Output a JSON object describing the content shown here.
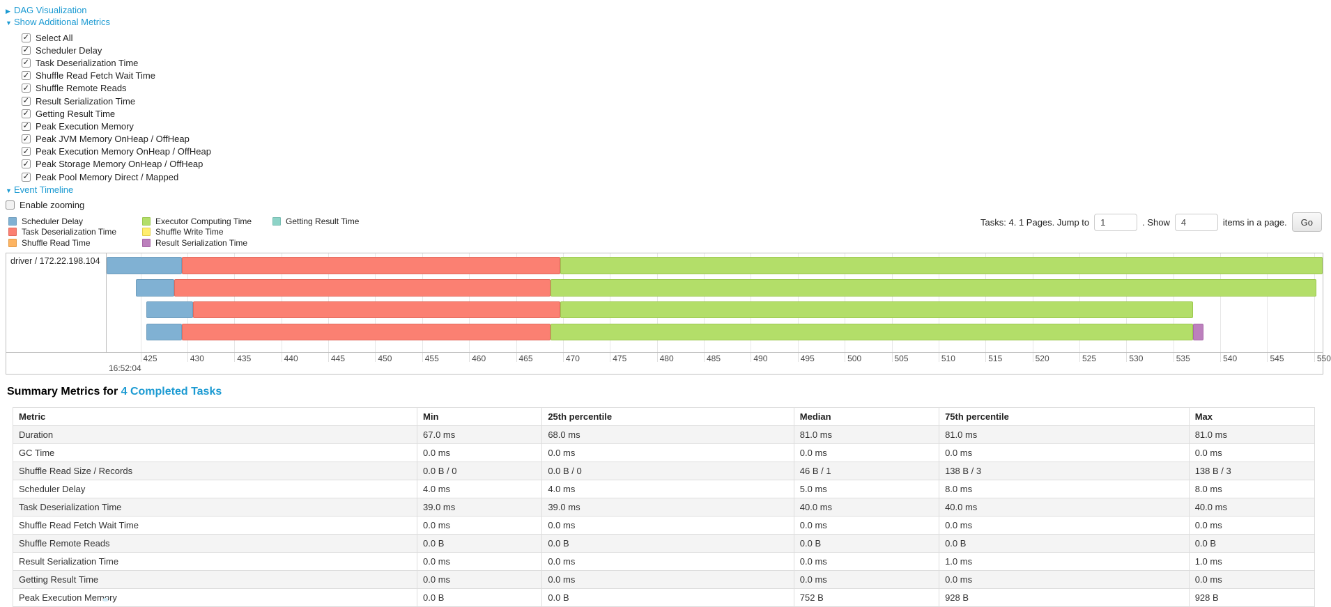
{
  "sections": {
    "dag": {
      "label": "DAG Visualization",
      "state": "collapsed"
    },
    "metrics": {
      "label": "Show Additional Metrics",
      "state": "expanded"
    },
    "event_timeline": {
      "label": "Event Timeline",
      "state": "expanded"
    }
  },
  "metric_checkboxes": [
    {
      "label": "Select All",
      "checked": true
    },
    {
      "label": "Scheduler Delay",
      "checked": true
    },
    {
      "label": "Task Deserialization Time",
      "checked": true
    },
    {
      "label": "Shuffle Read Fetch Wait Time",
      "checked": true
    },
    {
      "label": "Shuffle Remote Reads",
      "checked": true
    },
    {
      "label": "Result Serialization Time",
      "checked": true
    },
    {
      "label": "Getting Result Time",
      "checked": true
    },
    {
      "label": "Peak Execution Memory",
      "checked": true
    },
    {
      "label": "Peak JVM Memory OnHeap / OffHeap",
      "checked": true
    },
    {
      "label": "Peak Execution Memory OnHeap / OffHeap",
      "checked": true
    },
    {
      "label": "Peak Storage Memory OnHeap / OffHeap",
      "checked": true
    },
    {
      "label": "Peak Pool Memory Direct / Mapped",
      "checked": true
    }
  ],
  "enable_zooming": {
    "label": "Enable zooming",
    "checked": false
  },
  "series_colors": {
    "scheduler_delay": {
      "fill": "#80B1D3",
      "border": "#6f9dbd"
    },
    "task_deserialization": {
      "fill": "#FB8072",
      "border": "#e26a5d"
    },
    "shuffle_read": {
      "fill": "#FDB462",
      "border": "#e49a47"
    },
    "executor_computing": {
      "fill": "#B3DE69",
      "border": "#9cc850"
    },
    "shuffle_write": {
      "fill": "#FFED6F",
      "border": "#e3cf4b"
    },
    "result_serialization": {
      "fill": "#BC80BD",
      "border": "#a667a7"
    },
    "getting_result": {
      "fill": "#8DD3C7",
      "border": "#76bcb0"
    }
  },
  "legend_columns": [
    [
      {
        "key": "scheduler_delay",
        "label": "Scheduler Delay"
      },
      {
        "key": "task_deserialization",
        "label": "Task Deserialization Time"
      },
      {
        "key": "shuffle_read",
        "label": "Shuffle Read Time"
      }
    ],
    [
      {
        "key": "executor_computing",
        "label": "Executor Computing Time"
      },
      {
        "key": "shuffle_write",
        "label": "Shuffle Write Time"
      },
      {
        "key": "result_serialization",
        "label": "Result Serialization Time"
      }
    ],
    [
      {
        "key": "getting_result",
        "label": "Getting Result Time"
      }
    ]
  ],
  "pagination": {
    "prefix": "Tasks: 4. 1 Pages. Jump to",
    "jump_value": "1",
    "mid": ". Show",
    "show_value": "4",
    "suffix": "items in a page.",
    "go_label": "Go"
  },
  "timeline": {
    "executor_label": "driver / 172.22.198.104",
    "axis": {
      "domain": [
        421.4,
        550.9
      ],
      "ticks": [
        425,
        430,
        435,
        440,
        445,
        450,
        455,
        460,
        465,
        470,
        475,
        480,
        485,
        490,
        495,
        500,
        505,
        510,
        515,
        520,
        525,
        530,
        535,
        540,
        545,
        550
      ],
      "time_label": "16:52:04"
    },
    "tasks": [
      {
        "segments": [
          {
            "key": "scheduler_delay",
            "start": 421.4,
            "end": 429.4
          },
          {
            "key": "task_deserialization",
            "start": 429.4,
            "end": 469.7
          },
          {
            "key": "executor_computing",
            "start": 469.7,
            "end": 550.9
          }
        ]
      },
      {
        "segments": [
          {
            "key": "scheduler_delay",
            "start": 424.5,
            "end": 428.6
          },
          {
            "key": "task_deserialization",
            "start": 428.6,
            "end": 468.7
          },
          {
            "key": "executor_computing",
            "start": 468.7,
            "end": 550.2
          }
        ]
      },
      {
        "segments": [
          {
            "key": "scheduler_delay",
            "start": 425.6,
            "end": 430.6
          },
          {
            "key": "task_deserialization",
            "start": 430.6,
            "end": 469.7
          },
          {
            "key": "executor_computing",
            "start": 469.7,
            "end": 537.1
          }
        ]
      },
      {
        "segments": [
          {
            "key": "scheduler_delay",
            "start": 425.6,
            "end": 429.4
          },
          {
            "key": "task_deserialization",
            "start": 429.4,
            "end": 468.7
          },
          {
            "key": "executor_computing",
            "start": 468.7,
            "end": 537.1
          },
          {
            "key": "result_serialization",
            "start": 537.1,
            "end": 538.2
          }
        ]
      }
    ]
  },
  "summary": {
    "heading_prefix": "Summary Metrics for ",
    "heading_link": "4 Completed Tasks",
    "columns": [
      "Metric",
      "Min",
      "25th percentile",
      "Median",
      "75th percentile",
      "Max"
    ],
    "rows": [
      [
        "Duration",
        "67.0 ms",
        "68.0 ms",
        "81.0 ms",
        "81.0 ms",
        "81.0 ms"
      ],
      [
        "GC Time",
        "0.0 ms",
        "0.0 ms",
        "0.0 ms",
        "0.0 ms",
        "0.0 ms"
      ],
      [
        "Shuffle Read Size / Records",
        "0.0 B / 0",
        "0.0 B / 0",
        "46 B / 1",
        "138 B / 3",
        "138 B / 3"
      ],
      [
        "Scheduler Delay",
        "4.0 ms",
        "4.0 ms",
        "5.0 ms",
        "8.0 ms",
        "8.0 ms"
      ],
      [
        "Task Deserialization Time",
        "39.0 ms",
        "39.0 ms",
        "40.0 ms",
        "40.0 ms",
        "40.0 ms"
      ],
      [
        "Shuffle Read Fetch Wait Time",
        "0.0 ms",
        "0.0 ms",
        "0.0 ms",
        "0.0 ms",
        "0.0 ms"
      ],
      [
        "Shuffle Remote Reads",
        "0.0 B",
        "0.0 B",
        "0.0 B",
        "0.0 B",
        "0.0 B"
      ],
      [
        "Result Serialization Time",
        "0.0 ms",
        "0.0 ms",
        "0.0 ms",
        "1.0 ms",
        "1.0 ms"
      ],
      [
        "Getting Result Time",
        "0.0 ms",
        "0.0 ms",
        "0.0 ms",
        "0.0 ms",
        "0.0 ms"
      ],
      [
        "Peak Execution Memory",
        "0.0 B",
        "0.0 B",
        "752 B",
        "928 B",
        "928 B"
      ]
    ]
  }
}
